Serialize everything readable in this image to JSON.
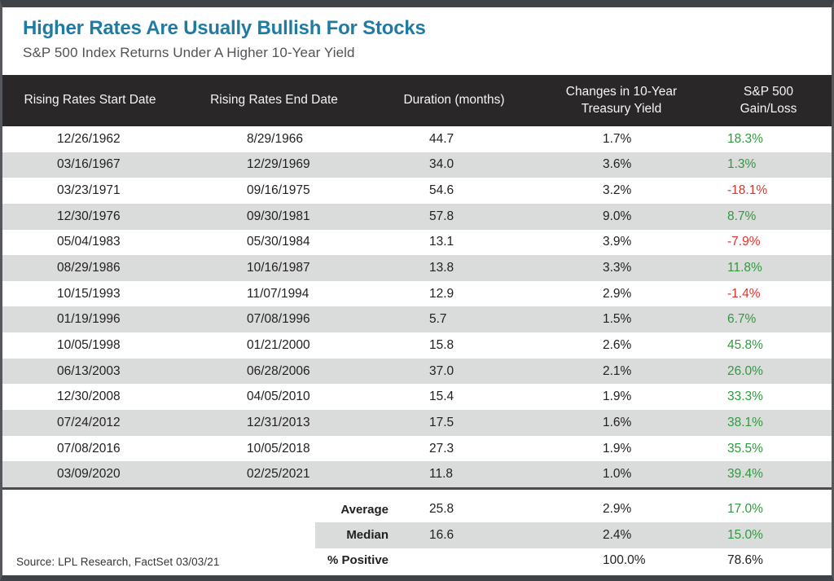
{
  "colors": {
    "title_teal": "#1e7ba3",
    "positive_green": "#2f9a3d",
    "negative_red": "#de352b",
    "header_bg": "#2a2728",
    "alt_row_bg": "#dadcdb"
  },
  "chart_data": {
    "type": "table",
    "title": "Higher Rates Are Usually Bullish For Stocks",
    "subtitle": "S&P 500 Index Returns Under A Higher 10-Year Yield",
    "columns": [
      "Rising Rates Start Date",
      "Rising Rates End Date",
      "Duration (months)",
      "Changes in 10-Year\nTreasury Yield",
      "S&P 500\nGain/Loss"
    ],
    "rows": [
      {
        "start": "12/26/1962",
        "end": "8/29/1966",
        "months": "44.7",
        "yield": "1.7%",
        "gain": "18.3%",
        "tone": "green"
      },
      {
        "start": "03/16/1967",
        "end": "12/29/1969",
        "months": "34.0",
        "yield": "3.6%",
        "gain": "1.3%",
        "tone": "green"
      },
      {
        "start": "03/23/1971",
        "end": "09/16/1975",
        "months": "54.6",
        "yield": "3.2%",
        "gain": "-18.1%",
        "tone": "red"
      },
      {
        "start": "12/30/1976",
        "end": "09/30/1981",
        "months": "57.8",
        "yield": "9.0%",
        "gain": "8.7%",
        "tone": "green"
      },
      {
        "start": "05/04/1983",
        "end": "05/30/1984",
        "months": "13.1",
        "yield": "3.9%",
        "gain": "-7.9%",
        "tone": "red"
      },
      {
        "start": "08/29/1986",
        "end": "10/16/1987",
        "months": "13.8",
        "yield": "3.3%",
        "gain": "11.8%",
        "tone": "green"
      },
      {
        "start": "10/15/1993",
        "end": "11/07/1994",
        "months": "12.9",
        "yield": "2.9%",
        "gain": "-1.4%",
        "tone": "red"
      },
      {
        "start": "01/19/1996",
        "end": "07/08/1996",
        "months": "5.7",
        "yield": "1.5%",
        "gain": "6.7%",
        "tone": "green"
      },
      {
        "start": "10/05/1998",
        "end": "01/21/2000",
        "months": "15.8",
        "yield": "2.6%",
        "gain": "45.8%",
        "tone": "green"
      },
      {
        "start": "06/13/2003",
        "end": "06/28/2006",
        "months": "37.0",
        "yield": "2.1%",
        "gain": "26.0%",
        "tone": "green"
      },
      {
        "start": "12/30/2008",
        "end": "04/05/2010",
        "months": "15.4",
        "yield": "1.9%",
        "gain": "33.3%",
        "tone": "green"
      },
      {
        "start": "07/24/2012",
        "end": "12/31/2013",
        "months": "17.5",
        "yield": "1.6%",
        "gain": "38.1%",
        "tone": "green"
      },
      {
        "start": "07/08/2016",
        "end": "10/05/2018",
        "months": "27.3",
        "yield": "1.9%",
        "gain": "35.5%",
        "tone": "green"
      },
      {
        "start": "03/09/2020",
        "end": "02/25/2021",
        "months": "11.8",
        "yield": "1.0%",
        "gain": "39.4%",
        "tone": "green"
      }
    ],
    "summary": [
      {
        "label": "Average",
        "months": "25.8",
        "yield": "2.9%",
        "gain": "17.0%",
        "tone": "green"
      },
      {
        "label": "Median",
        "months": "16.6",
        "yield": "2.4%",
        "gain": "15.0%",
        "tone": "green"
      },
      {
        "label": "% Positive",
        "months": "",
        "yield": "100.0%",
        "gain": "78.6%",
        "tone": "dark"
      }
    ],
    "source": "Source: LPL Research, FactSet 03/03/21",
    "layout": {
      "legend": "none",
      "grid": "row-striping",
      "value_alignment": "left"
    }
  }
}
